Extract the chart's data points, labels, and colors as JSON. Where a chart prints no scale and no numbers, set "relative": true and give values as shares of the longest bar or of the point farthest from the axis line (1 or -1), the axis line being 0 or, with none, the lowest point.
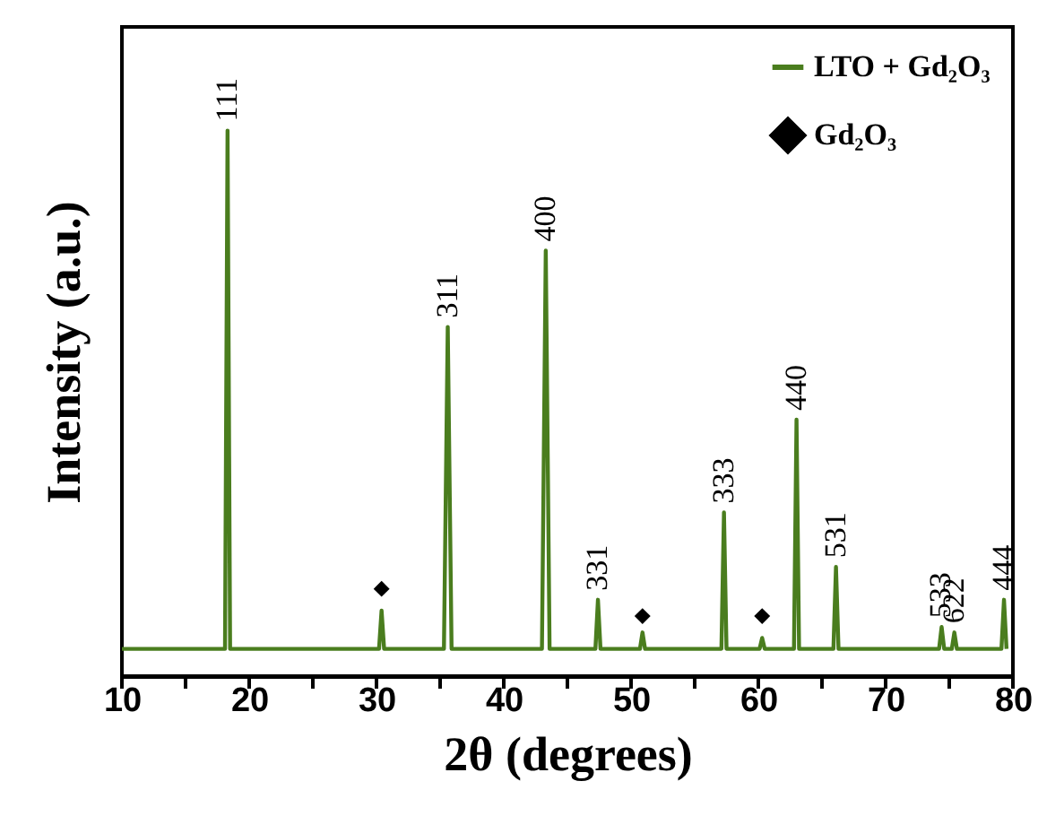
{
  "chart_data": {
    "type": "line",
    "relative": true,
    "xlabel": "2θ  (degrees)",
    "ylabel": "Intensity (a.u.)",
    "xlim": [
      10,
      80
    ],
    "xticks": [
      10,
      {
        "value": 15,
        "label": null
      },
      20,
      {
        "value": 25,
        "label": null
      },
      30,
      {
        "value": 35,
        "label": null
      },
      40,
      {
        "value": 45,
        "label": null
      },
      50,
      {
        "value": 55,
        "label": null
      },
      60,
      {
        "value": 65,
        "label": null
      },
      70,
      {
        "value": 75,
        "label": null
      },
      80
    ],
    "tick_labels": "x",
    "grid": false,
    "legend": "top right",
    "series": [
      {
        "name": "LTO + Gd₂O₃",
        "color": "#4a7d1e",
        "line_style": "solid",
        "x": [
          10,
          18.1,
          18.3,
          18.5,
          30.2,
          30.4,
          30.6,
          35.3,
          35.6,
          35.9,
          43.0,
          43.3,
          43.6,
          47.2,
          47.4,
          47.6,
          50.7,
          50.9,
          51.1,
          57.1,
          57.3,
          57.5,
          60.1,
          60.3,
          60.5,
          62.8,
          63.0,
          63.2,
          65.9,
          66.1,
          66.3,
          74.2,
          74.4,
          74.6,
          75.2,
          75.4,
          75.6,
          79.1,
          79.3,
          79.5
        ],
        "values": [
          0.05,
          0.05,
          1,
          0.05,
          0.05,
          0.12,
          0.05,
          0.05,
          0.64,
          0.05,
          0.05,
          0.78,
          0.05,
          0.05,
          0.14,
          0.05,
          0.05,
          0.08,
          0.05,
          0.05,
          0.3,
          0.05,
          0.05,
          0.07,
          0.05,
          0.05,
          0.47,
          0.05,
          0.05,
          0.2,
          0.05,
          0.05,
          0.09,
          0.05,
          0.05,
          0.08,
          0.05,
          0.05,
          0.14,
          0.05
        ]
      },
      {
        "name": "Gd₂O₃",
        "type": "scatter",
        "marker": "diamond",
        "color": "#000000",
        "x": [
          30.4,
          50.9,
          60.3
        ],
        "values": [
          0.16,
          0.11,
          0.11
        ]
      }
    ],
    "annotations": [
      {
        "text": "111",
        "x": 18.3,
        "y": 1
      },
      {
        "text": "311",
        "x": 35.6,
        "y": 0.64
      },
      {
        "text": "400",
        "x": 43.3,
        "y": 0.78
      },
      {
        "text": "331",
        "x": 47.4,
        "y": 0.14
      },
      {
        "text": "333",
        "x": 57.3,
        "y": 0.3
      },
      {
        "text": "440",
        "x": 63.0,
        "y": 0.47
      },
      {
        "text": "531",
        "x": 66.1,
        "y": 0.2
      },
      {
        "text": "533",
        "x": 74.4,
        "y": 0.09
      },
      {
        "text": "622",
        "x": 75.4,
        "y": 0.08
      },
      {
        "text": "444",
        "x": 79.3,
        "y": 0.14
      }
    ]
  }
}
